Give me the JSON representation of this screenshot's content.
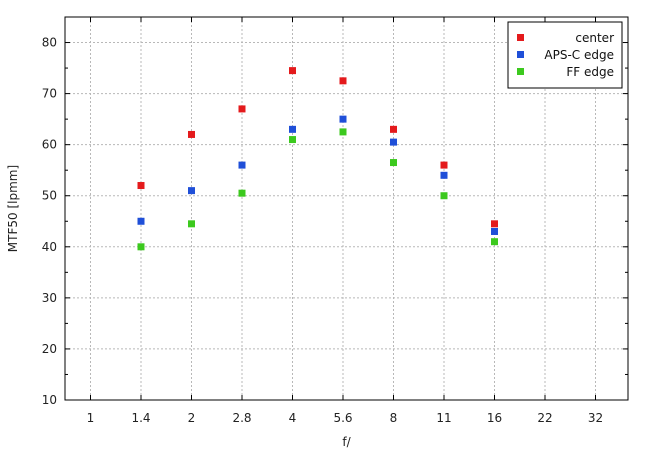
{
  "chart_data": {
    "type": "scatter",
    "title": "",
    "xlabel": "f/",
    "ylabel": "MTF50 [lpmm]",
    "categories": [
      "1",
      "1.4",
      "2",
      "2.8",
      "4",
      "5.6",
      "8",
      "11",
      "16",
      "22",
      "32"
    ],
    "ylim": [
      10,
      85
    ],
    "yticks": [
      10,
      20,
      30,
      40,
      50,
      60,
      70,
      80
    ],
    "grid": true,
    "legend_position": "top-right",
    "series": [
      {
        "name": "center",
        "color": "#e41a1c",
        "x": [
          "1.4",
          "2",
          "2.8",
          "4",
          "5.6",
          "8",
          "11",
          "16"
        ],
        "values": [
          52,
          62,
          67,
          74.5,
          72.5,
          63,
          56,
          44.5
        ]
      },
      {
        "name": "APS-C edge",
        "color": "#1f4fd8",
        "x": [
          "1.4",
          "2",
          "2.8",
          "4",
          "5.6",
          "8",
          "11",
          "16"
        ],
        "values": [
          45,
          51,
          56,
          63,
          65,
          60.5,
          54,
          43
        ]
      },
      {
        "name": "FF edge",
        "color": "#3cc91e",
        "x": [
          "1.4",
          "2",
          "2.8",
          "4",
          "5.6",
          "8",
          "11",
          "16"
        ],
        "values": [
          40,
          44.5,
          50.5,
          61,
          62.5,
          56.5,
          50,
          41
        ]
      }
    ]
  }
}
